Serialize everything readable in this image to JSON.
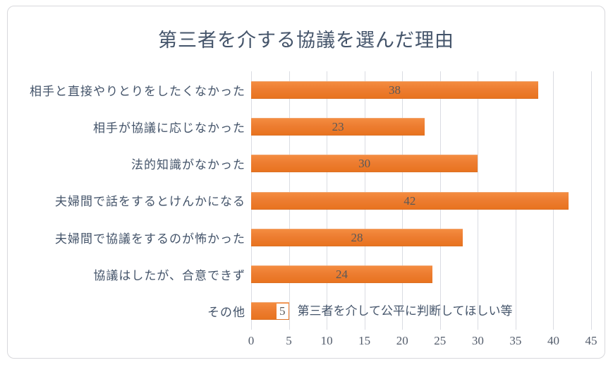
{
  "chart_data": {
    "type": "bar",
    "orientation": "horizontal",
    "title": "第三者を介する協議を選んだ理由",
    "categories": [
      "相手と直接やりとりをしたくなかった",
      "相手が協議に応じなかった",
      "法的知識がなかった",
      "夫婦間で話をするとけんかになる",
      "夫婦間で協議をするのが怖かった",
      "協議はしたが、合意できず",
      "その他"
    ],
    "values": [
      38,
      23,
      30,
      42,
      28,
      24,
      5
    ],
    "data_labels": [
      "38",
      "23",
      "30",
      "42",
      "28",
      "24",
      "5"
    ],
    "annotation": {
      "category_index": 6,
      "text": "第三者を介して公平に判断してほしい等"
    },
    "xlabel": "",
    "ylabel": "",
    "xlim": [
      0,
      45
    ],
    "x_ticks": [
      0,
      5,
      10,
      15,
      20,
      25,
      30,
      35,
      40,
      45
    ],
    "grid": "vertical",
    "legend": "none",
    "colors": {
      "bar_fill": "#ED7D31",
      "bar_fill_top": "#F48C40",
      "bar_fill_bottom": "#E8731F",
      "title_text": "#44546A",
      "category_text": "#44546A",
      "value_text": "#595959",
      "tick_text": "#535C6B",
      "gridline": "#DADCE2",
      "frame_border": "#D8D8DC"
    }
  }
}
